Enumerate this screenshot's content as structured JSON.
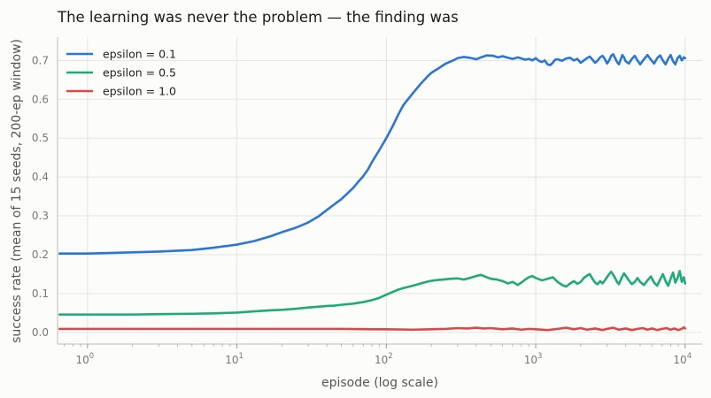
{
  "chart_data": {
    "type": "line",
    "title": "The learning was never the problem — the finding was",
    "xlabel": "episode (log scale)",
    "ylabel": "success rate (mean of 15 seeds, 200-ep window)",
    "x_scale": "log",
    "xlim": [
      0.63,
      13000
    ],
    "ylim": [
      -0.03,
      0.76
    ],
    "x_ticks": [
      {
        "value": 1,
        "base": "10",
        "exp": "0"
      },
      {
        "value": 10,
        "base": "10",
        "exp": "1"
      },
      {
        "value": 100,
        "base": "10",
        "exp": "2"
      },
      {
        "value": 1000,
        "base": "10",
        "exp": "3"
      },
      {
        "value": 10000,
        "base": "10",
        "exp": "4"
      }
    ],
    "y_ticks": [
      {
        "value": 0.0,
        "label": "0.0"
      },
      {
        "value": 0.1,
        "label": "0.1"
      },
      {
        "value": 0.2,
        "label": "0.2"
      },
      {
        "value": 0.3,
        "label": "0.3"
      },
      {
        "value": 0.4,
        "label": "0.4"
      },
      {
        "value": 0.5,
        "label": "0.5"
      },
      {
        "value": 0.6,
        "label": "0.6"
      },
      {
        "value": 0.7,
        "label": "0.7"
      }
    ],
    "grid": true,
    "legend_position": "top-left",
    "series": [
      {
        "name": "epsilon = 0.1",
        "color": "#2b76d2",
        "points": [
          [
            0.65,
            0.203
          ],
          [
            1,
            0.203
          ],
          [
            2,
            0.206
          ],
          [
            3,
            0.208
          ],
          [
            5,
            0.212
          ],
          [
            7,
            0.218
          ],
          [
            10,
            0.226
          ],
          [
            13,
            0.235
          ],
          [
            17,
            0.248
          ],
          [
            20,
            0.258
          ],
          [
            25,
            0.27
          ],
          [
            30,
            0.283
          ],
          [
            35,
            0.298
          ],
          [
            40,
            0.315
          ],
          [
            45,
            0.33
          ],
          [
            50,
            0.343
          ],
          [
            55,
            0.358
          ],
          [
            60,
            0.372
          ],
          [
            65,
            0.388
          ],
          [
            70,
            0.402
          ],
          [
            75,
            0.418
          ],
          [
            80,
            0.438
          ],
          [
            90,
            0.47
          ],
          [
            100,
            0.5
          ],
          [
            110,
            0.53
          ],
          [
            120,
            0.56
          ],
          [
            130,
            0.585
          ],
          [
            150,
            0.615
          ],
          [
            170,
            0.64
          ],
          [
            190,
            0.66
          ],
          [
            200,
            0.668
          ],
          [
            220,
            0.678
          ],
          [
            250,
            0.692
          ],
          [
            280,
            0.7
          ],
          [
            300,
            0.706
          ],
          [
            330,
            0.709
          ],
          [
            360,
            0.707
          ],
          [
            400,
            0.703
          ],
          [
            430,
            0.708
          ],
          [
            470,
            0.713
          ],
          [
            520,
            0.712
          ],
          [
            560,
            0.708
          ],
          [
            600,
            0.711
          ],
          [
            650,
            0.707
          ],
          [
            700,
            0.704
          ],
          [
            760,
            0.708
          ],
          [
            800,
            0.705
          ],
          [
            850,
            0.702
          ],
          [
            900,
            0.704
          ],
          [
            950,
            0.7
          ],
          [
            1000,
            0.706
          ],
          [
            1050,
            0.699
          ],
          [
            1100,
            0.696
          ],
          [
            1150,
            0.7
          ],
          [
            1200,
            0.69
          ],
          [
            1250,
            0.688
          ],
          [
            1300,
            0.694
          ],
          [
            1350,
            0.702
          ],
          [
            1400,
            0.703
          ],
          [
            1500,
            0.699
          ],
          [
            1600,
            0.705
          ],
          [
            1700,
            0.707
          ],
          [
            1800,
            0.7
          ],
          [
            1900,
            0.704
          ],
          [
            2000,
            0.694
          ],
          [
            2100,
            0.7
          ],
          [
            2200,
            0.706
          ],
          [
            2300,
            0.71
          ],
          [
            2400,
            0.702
          ],
          [
            2500,
            0.694
          ],
          [
            2600,
            0.7
          ],
          [
            2700,
            0.708
          ],
          [
            2800,
            0.712
          ],
          [
            2900,
            0.704
          ],
          [
            3000,
            0.692
          ],
          [
            3100,
            0.7
          ],
          [
            3200,
            0.712
          ],
          [
            3300,
            0.716
          ],
          [
            3400,
            0.706
          ],
          [
            3500,
            0.696
          ],
          [
            3600,
            0.69
          ],
          [
            3700,
            0.702
          ],
          [
            3800,
            0.714
          ],
          [
            3900,
            0.708
          ],
          [
            4000,
            0.698
          ],
          [
            4200,
            0.692
          ],
          [
            4400,
            0.704
          ],
          [
            4600,
            0.712
          ],
          [
            4800,
            0.7
          ],
          [
            5000,
            0.69
          ],
          [
            5300,
            0.703
          ],
          [
            5600,
            0.714
          ],
          [
            5900,
            0.702
          ],
          [
            6200,
            0.692
          ],
          [
            6500,
            0.706
          ],
          [
            6800,
            0.713
          ],
          [
            7100,
            0.7
          ],
          [
            7400,
            0.69
          ],
          [
            7700,
            0.704
          ],
          [
            8000,
            0.714
          ],
          [
            8300,
            0.698
          ],
          [
            8600,
            0.69
          ],
          [
            8900,
            0.706
          ],
          [
            9200,
            0.712
          ],
          [
            9500,
            0.7
          ],
          [
            9800,
            0.708
          ],
          [
            10000,
            0.706
          ]
        ]
      },
      {
        "name": "epsilon = 0.5",
        "color": "#1eab76",
        "points": [
          [
            0.65,
            0.046
          ],
          [
            1,
            0.046
          ],
          [
            2,
            0.046
          ],
          [
            3,
            0.047
          ],
          [
            5,
            0.048
          ],
          [
            7,
            0.049
          ],
          [
            10,
            0.051
          ],
          [
            13,
            0.054
          ],
          [
            17,
            0.057
          ],
          [
            20,
            0.058
          ],
          [
            25,
            0.061
          ],
          [
            30,
            0.064
          ],
          [
            35,
            0.066
          ],
          [
            40,
            0.068
          ],
          [
            45,
            0.069
          ],
          [
            50,
            0.071
          ],
          [
            60,
            0.074
          ],
          [
            70,
            0.078
          ],
          [
            80,
            0.083
          ],
          [
            90,
            0.089
          ],
          [
            100,
            0.097
          ],
          [
            110,
            0.104
          ],
          [
            120,
            0.11
          ],
          [
            130,
            0.114
          ],
          [
            150,
            0.12
          ],
          [
            170,
            0.126
          ],
          [
            190,
            0.131
          ],
          [
            210,
            0.134
          ],
          [
            240,
            0.136
          ],
          [
            270,
            0.138
          ],
          [
            300,
            0.139
          ],
          [
            330,
            0.136
          ],
          [
            360,
            0.14
          ],
          [
            400,
            0.145
          ],
          [
            430,
            0.148
          ],
          [
            470,
            0.142
          ],
          [
            500,
            0.138
          ],
          [
            550,
            0.136
          ],
          [
            600,
            0.132
          ],
          [
            650,
            0.126
          ],
          [
            700,
            0.13
          ],
          [
            760,
            0.122
          ],
          [
            800,
            0.128
          ],
          [
            850,
            0.136
          ],
          [
            900,
            0.142
          ],
          [
            950,
            0.145
          ],
          [
            1000,
            0.14
          ],
          [
            1100,
            0.134
          ],
          [
            1200,
            0.138
          ],
          [
            1300,
            0.142
          ],
          [
            1400,
            0.13
          ],
          [
            1500,
            0.122
          ],
          [
            1600,
            0.118
          ],
          [
            1700,
            0.126
          ],
          [
            1800,
            0.132
          ],
          [
            1900,
            0.125
          ],
          [
            2000,
            0.13
          ],
          [
            2100,
            0.14
          ],
          [
            2200,
            0.146
          ],
          [
            2300,
            0.15
          ],
          [
            2400,
            0.138
          ],
          [
            2500,
            0.128
          ],
          [
            2600,
            0.124
          ],
          [
            2700,
            0.132
          ],
          [
            2800,
            0.126
          ],
          [
            2900,
            0.134
          ],
          [
            3000,
            0.142
          ],
          [
            3100,
            0.15
          ],
          [
            3200,
            0.156
          ],
          [
            3300,
            0.148
          ],
          [
            3400,
            0.14
          ],
          [
            3500,
            0.13
          ],
          [
            3600,
            0.124
          ],
          [
            3700,
            0.134
          ],
          [
            3800,
            0.144
          ],
          [
            3900,
            0.152
          ],
          [
            4000,
            0.146
          ],
          [
            4200,
            0.134
          ],
          [
            4400,
            0.124
          ],
          [
            4600,
            0.13
          ],
          [
            4800,
            0.14
          ],
          [
            5000,
            0.13
          ],
          [
            5300,
            0.122
          ],
          [
            5600,
            0.134
          ],
          [
            5900,
            0.144
          ],
          [
            6200,
            0.128
          ],
          [
            6500,
            0.12
          ],
          [
            6800,
            0.136
          ],
          [
            7100,
            0.15
          ],
          [
            7400,
            0.132
          ],
          [
            7700,
            0.12
          ],
          [
            8000,
            0.138
          ],
          [
            8300,
            0.154
          ],
          [
            8600,
            0.128
          ],
          [
            8900,
            0.14
          ],
          [
            9200,
            0.158
          ],
          [
            9500,
            0.13
          ],
          [
            9800,
            0.142
          ],
          [
            10000,
            0.126
          ]
        ]
      },
      {
        "name": "epsilon = 1.0",
        "color": "#dc4848",
        "points": [
          [
            0.65,
            0.009
          ],
          [
            1,
            0.009
          ],
          [
            3,
            0.009
          ],
          [
            10,
            0.009
          ],
          [
            30,
            0.009
          ],
          [
            50,
            0.009
          ],
          [
            80,
            0.008
          ],
          [
            100,
            0.008
          ],
          [
            150,
            0.007
          ],
          [
            200,
            0.008
          ],
          [
            250,
            0.009
          ],
          [
            300,
            0.011
          ],
          [
            350,
            0.01
          ],
          [
            400,
            0.012
          ],
          [
            450,
            0.01
          ],
          [
            500,
            0.011
          ],
          [
            600,
            0.008
          ],
          [
            700,
            0.01
          ],
          [
            800,
            0.007
          ],
          [
            900,
            0.009
          ],
          [
            1000,
            0.008
          ],
          [
            1200,
            0.006
          ],
          [
            1400,
            0.009
          ],
          [
            1600,
            0.012
          ],
          [
            1800,
            0.008
          ],
          [
            2000,
            0.011
          ],
          [
            2200,
            0.007
          ],
          [
            2500,
            0.01
          ],
          [
            2800,
            0.006
          ],
          [
            3000,
            0.009
          ],
          [
            3300,
            0.012
          ],
          [
            3600,
            0.007
          ],
          [
            4000,
            0.01
          ],
          [
            4400,
            0.006
          ],
          [
            4800,
            0.009
          ],
          [
            5200,
            0.011
          ],
          [
            5600,
            0.007
          ],
          [
            6000,
            0.01
          ],
          [
            6500,
            0.006
          ],
          [
            7000,
            0.009
          ],
          [
            7500,
            0.011
          ],
          [
            8000,
            0.007
          ],
          [
            8500,
            0.01
          ],
          [
            9000,
            0.006
          ],
          [
            9500,
            0.009
          ],
          [
            9800,
            0.013
          ],
          [
            10000,
            0.01
          ]
        ]
      }
    ]
  }
}
